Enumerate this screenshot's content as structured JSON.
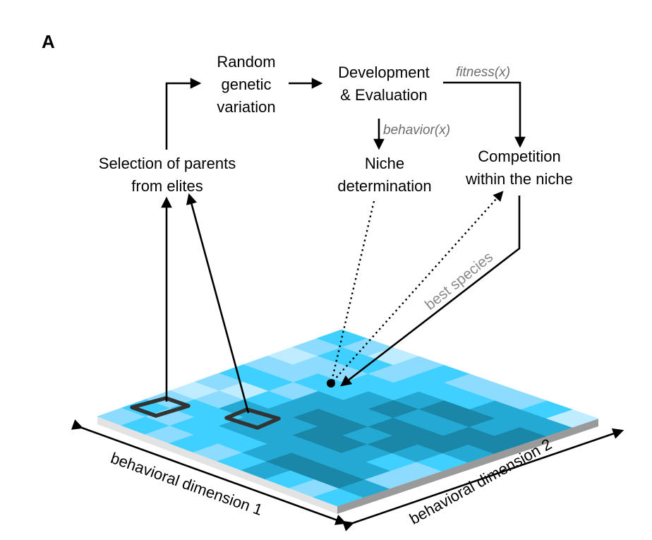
{
  "panel_label": "A",
  "nodes": {
    "selection": [
      "Selection of parents",
      "from elites"
    ],
    "variation": [
      "Random",
      "genetic",
      "variation"
    ],
    "development": [
      "Development",
      "& Evaluation"
    ],
    "niche": [
      "Niche",
      "determination"
    ],
    "competition": [
      "Competition",
      "within the niche"
    ]
  },
  "functions": {
    "fitness": "fitness(x)",
    "behavior": "behavior(x)"
  },
  "best_species": "best species",
  "axes": {
    "dim1": "behavioral dimension 1",
    "dim2": "behavioral dimension 2"
  },
  "grid": {
    "rows": 10,
    "cols": 10,
    "palette": [
      "#bfecff",
      "#8ddcff",
      "#3fd0ff",
      "#24a9d4",
      "#1a86a8"
    ],
    "levels": [
      [
        1,
        2,
        1,
        0,
        1,
        2,
        1,
        0,
        1,
        2
      ],
      [
        2,
        1,
        2,
        1,
        0,
        2,
        1,
        1,
        2,
        1
      ],
      [
        1,
        2,
        2,
        3,
        2,
        1,
        2,
        1,
        2,
        0
      ],
      [
        2,
        2,
        3,
        3,
        3,
        3,
        2,
        2,
        1,
        1
      ],
      [
        1,
        2,
        3,
        3,
        4,
        3,
        3,
        2,
        2,
        2
      ],
      [
        2,
        3,
        3,
        4,
        4,
        3,
        4,
        3,
        2,
        1
      ],
      [
        3,
        4,
        3,
        4,
        3,
        4,
        3,
        4,
        2,
        1
      ],
      [
        2,
        4,
        3,
        3,
        4,
        4,
        3,
        4,
        3,
        1
      ],
      [
        1,
        4,
        3,
        2,
        3,
        4,
        4,
        3,
        3,
        2
      ],
      [
        2,
        3,
        1,
        1,
        2,
        3,
        4,
        4,
        3,
        0
      ]
    ]
  }
}
